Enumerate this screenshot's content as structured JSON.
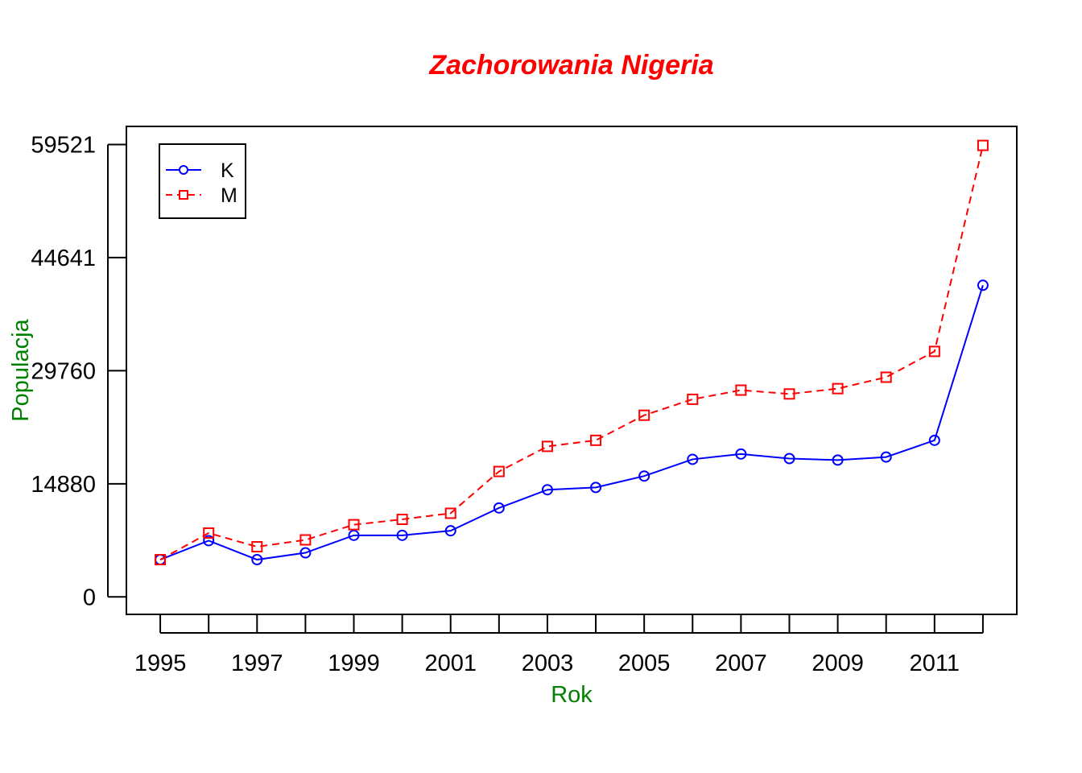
{
  "chart_data": {
    "type": "line",
    "title": "Zachorowania Nigeria",
    "xlabel": "Rok",
    "ylabel": "Populacja",
    "colors": {
      "title": "#ff0000",
      "axis_labels": "#008000"
    },
    "x": [
      1995,
      1996,
      1997,
      1998,
      1999,
      2000,
      2001,
      2002,
      2003,
      2004,
      2005,
      2006,
      2007,
      2008,
      2009,
      2010,
      2011,
      2012
    ],
    "x_tick_values": [
      1995,
      1996,
      1997,
      1998,
      1999,
      2000,
      2001,
      2002,
      2003,
      2004,
      2005,
      2006,
      2007,
      2008,
      2009,
      2010,
      2011,
      2012
    ],
    "x_tick_labels": [
      "1995",
      "",
      "1997",
      "",
      "1999",
      "",
      "2001",
      "",
      "2003",
      "",
      "2005",
      "",
      "2007",
      "",
      "2009",
      "",
      "2011",
      ""
    ],
    "y_ticks": [
      0,
      14880,
      29760,
      44641,
      59521
    ],
    "y_tick_labels": [
      "0",
      "14880",
      "29760",
      "44641",
      "59521"
    ],
    "xlim": [
      1994.3,
      2012.7
    ],
    "ylim": [
      -2300,
      61900
    ],
    "grid": false,
    "legend_position": "top-left",
    "series": [
      {
        "name": "K",
        "color": "#0000ff",
        "marker": "circle",
        "line_style": "solid",
        "values": [
          4900,
          7400,
          4900,
          5800,
          8100,
          8100,
          8700,
          11700,
          14100,
          14400,
          15900,
          18100,
          18800,
          18200,
          18000,
          18400,
          20600,
          41000
        ]
      },
      {
        "name": "M",
        "color": "#ff0000",
        "marker": "square",
        "line_style": "dashed",
        "values": [
          4900,
          8400,
          6600,
          7500,
          9500,
          10200,
          11000,
          16500,
          19800,
          20600,
          23900,
          26000,
          27200,
          26700,
          27400,
          28900,
          32300,
          59400
        ]
      }
    ]
  }
}
